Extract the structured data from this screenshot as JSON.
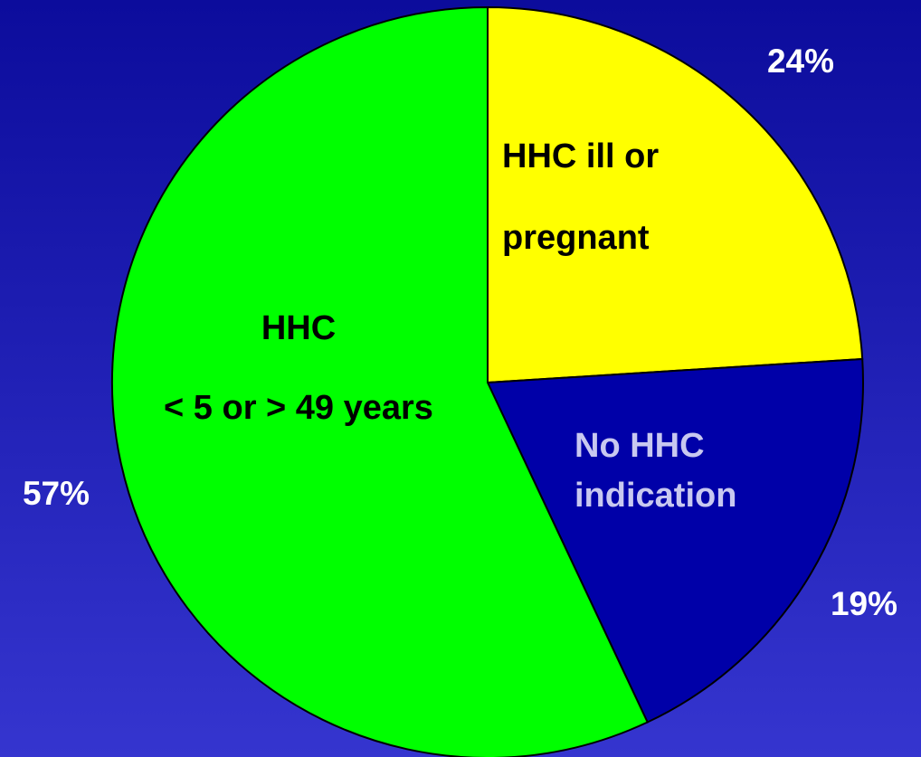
{
  "chart_data": {
    "type": "pie",
    "categories": [
      [
        "HHC ill or",
        "pregnant"
      ],
      [
        "No HHC",
        "indication"
      ],
      [
        "HHC",
        "< 5 or > 49 years"
      ]
    ],
    "values": [
      24,
      19,
      57
    ],
    "value_labels": [
      "24%",
      "19%",
      "57%"
    ],
    "colors": [
      "#ffff00",
      "#0000a8",
      "#00ff00"
    ]
  }
}
